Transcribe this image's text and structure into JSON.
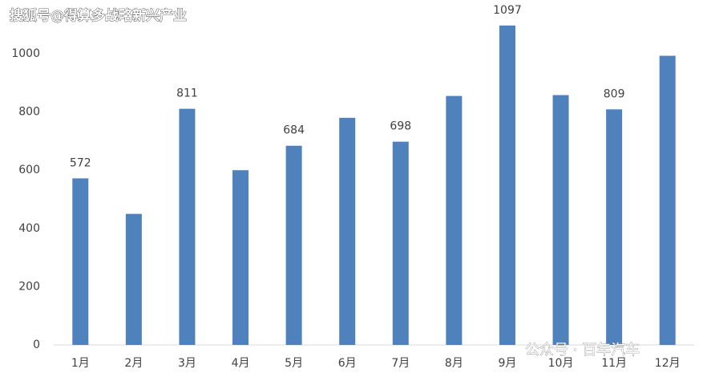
{
  "chart_data": {
    "type": "bar",
    "annotations": [
      "搜狐号@得算多战略新兴产业",
      "公众号 · 百年汽车"
    ],
    "categories": [
      "1月",
      "2月",
      "3月",
      "4月",
      "5月",
      "6月",
      "7月",
      "8月",
      "9月",
      "10月",
      "11月",
      "12月"
    ],
    "values": [
      572,
      450,
      811,
      600,
      684,
      780,
      698,
      855,
      1097,
      858,
      809,
      993
    ],
    "value_labels": [
      "572",
      null,
      "811",
      null,
      "684",
      null,
      "698",
      null,
      "1097",
      null,
      "809",
      null
    ],
    "color": "#4f81bd",
    "ylim": [
      0,
      1100
    ],
    "yticks": [
      0,
      200,
      400,
      600,
      800,
      1000
    ],
    "grid": false
  }
}
